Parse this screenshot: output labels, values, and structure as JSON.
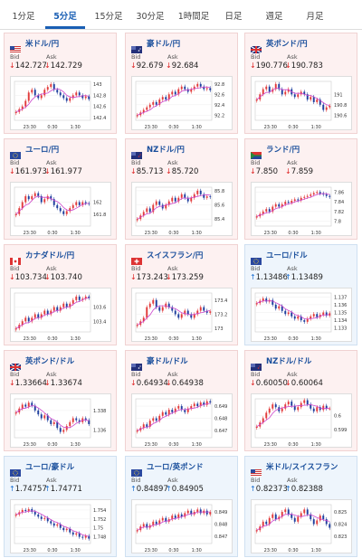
{
  "tabs": [
    "1分足",
    "5分足",
    "15分足",
    "30分足",
    "1時間足",
    "日足",
    "週足",
    "月足"
  ],
  "active_tab": "5分足",
  "colors": {
    "down_card_bg": "#fdf1f1",
    "up_card_bg": "#eef5fc",
    "down_arrow": "#dd2222",
    "up_arrow": "#1a6fd1",
    "candle_up": "#e23b3b",
    "candle_down": "#1f3f9e",
    "ma_line": "#cc44cc"
  },
  "bid_label": "Bid",
  "ask_label": "Ask",
  "cards": [
    {
      "pair": "米ドル/円",
      "flag": "us",
      "dir": "down",
      "arrow": "↓",
      "bid": "142.727",
      "ask": "142.729",
      "chart_data": {
        "type": "candlestick",
        "xticks": [
          "23:30",
          "0:30",
          "1:30"
        ],
        "yticks": [
          "143",
          "142.8",
          "142.6",
          "142.4"
        ],
        "ylim": [
          142.35,
          143.05
        ],
        "series": [
          142.5,
          142.55,
          142.6,
          142.7,
          142.85,
          142.9,
          142.8,
          142.75,
          142.8,
          142.9,
          142.95,
          143.0,
          142.9,
          142.85,
          142.8,
          142.75,
          142.7,
          142.75,
          142.8,
          142.85,
          142.8,
          142.75,
          142.78,
          142.73
        ]
      }
    },
    {
      "pair": "豪ドル/円",
      "flag": "au",
      "dir": "down",
      "arrow": "↓",
      "bid": "92.679",
      "ask": "92.684",
      "chart_data": {
        "type": "candlestick",
        "xticks": [
          "23:30",
          "0:30",
          "1:30"
        ],
        "yticks": [
          "92.8",
          "92.6",
          "92.4",
          "92.2"
        ],
        "ylim": [
          92.1,
          92.85
        ],
        "series": [
          92.2,
          92.25,
          92.3,
          92.35,
          92.4,
          92.45,
          92.4,
          92.5,
          92.55,
          92.5,
          92.6,
          92.65,
          92.6,
          92.7,
          92.75,
          92.7,
          92.65,
          92.7,
          92.75,
          92.8,
          92.75,
          92.7,
          92.72,
          92.68
        ]
      }
    },
    {
      "pair": "英ポンド/円",
      "flag": "gb",
      "dir": "down",
      "arrow": "↓",
      "bid": "190.776",
      "ask": "190.783",
      "chart_data": {
        "type": "candlestick",
        "xticks": [
          "23:30",
          "0:30",
          "1:30"
        ],
        "yticks": [
          "191",
          "190.8",
          "190.6"
        ],
        "ylim": [
          190.5,
          191.25
        ],
        "series": [
          190.9,
          191.0,
          191.1,
          191.15,
          191.05,
          191.1,
          191.2,
          191.1,
          191.0,
          191.05,
          191.1,
          191.0,
          190.95,
          191.0,
          191.05,
          191.0,
          190.9,
          190.95,
          190.85,
          190.9,
          190.8,
          190.7,
          190.75,
          190.78
        ]
      }
    },
    {
      "pair": "ユーロ/円",
      "flag": "eu",
      "dir": "down",
      "arrow": "↓",
      "bid": "161.973",
      "ask": "161.977",
      "chart_data": {
        "type": "candlestick",
        "xticks": [
          "23:30",
          "0:30",
          "1:30"
        ],
        "yticks": [
          "162",
          "161.8"
        ],
        "ylim": [
          161.6,
          162.25
        ],
        "series": [
          161.8,
          161.9,
          162.0,
          162.1,
          162.05,
          162.1,
          162.15,
          162.1,
          162.0,
          162.05,
          162.1,
          162.05,
          161.95,
          161.9,
          161.85,
          161.8,
          161.85,
          161.9,
          161.95,
          162.0,
          161.95,
          162.0,
          161.98,
          161.97
        ]
      }
    },
    {
      "pair": "NZドル/円",
      "flag": "nz",
      "dir": "down",
      "arrow": "↓",
      "bid": "85.713",
      "ask": "85.720",
      "chart_data": {
        "type": "candlestick",
        "xticks": [
          "23:30",
          "0:30",
          "1:30"
        ],
        "yticks": [
          "85.8",
          "85.6",
          "85.4"
        ],
        "ylim": [
          85.3,
          85.85
        ],
        "series": [
          85.4,
          85.45,
          85.5,
          85.55,
          85.5,
          85.6,
          85.65,
          85.6,
          85.55,
          85.6,
          85.65,
          85.7,
          85.65,
          85.7,
          85.75,
          85.7,
          85.65,
          85.7,
          85.75,
          85.8,
          85.75,
          85.7,
          85.72,
          85.71
        ]
      }
    },
    {
      "pair": "ランド/円",
      "flag": "za",
      "dir": "down",
      "arrow": "↓",
      "bid": "7.850",
      "ask": "7.859",
      "chart_data": {
        "type": "candlestick",
        "xticks": [
          "23:30",
          "0:30",
          "1:30"
        ],
        "yticks": [
          "7.86",
          "7.84",
          "7.82",
          "7.8"
        ],
        "ylim": [
          7.79,
          7.87
        ],
        "series": [
          7.81,
          7.815,
          7.82,
          7.825,
          7.82,
          7.83,
          7.835,
          7.83,
          7.835,
          7.84,
          7.838,
          7.842,
          7.845,
          7.843,
          7.848,
          7.85,
          7.852,
          7.855,
          7.858,
          7.86,
          7.857,
          7.855,
          7.852,
          7.85
        ]
      }
    },
    {
      "pair": "カナダドル/円",
      "flag": "ca",
      "dir": "down",
      "arrow": "↓",
      "bid": "103.734",
      "ask": "103.740",
      "chart_data": {
        "type": "candlestick",
        "xticks": [
          "23:30",
          "0:30",
          "1:30"
        ],
        "yticks": [
          "103.6",
          "103.4"
        ],
        "ylim": [
          103.25,
          103.8
        ],
        "series": [
          103.3,
          103.35,
          103.4,
          103.45,
          103.4,
          103.45,
          103.5,
          103.45,
          103.5,
          103.55,
          103.5,
          103.55,
          103.6,
          103.55,
          103.6,
          103.65,
          103.6,
          103.65,
          103.7,
          103.75,
          103.7,
          103.72,
          103.75,
          103.73
        ]
      }
    },
    {
      "pair": "スイスフラン/円",
      "flag": "ch",
      "dir": "down",
      "arrow": "↓",
      "bid": "173.243",
      "ask": "173.259",
      "chart_data": {
        "type": "candlestick",
        "xticks": [
          "23:30",
          "0:30",
          "1:30"
        ],
        "yticks": [
          "173.4",
          "173.2",
          "173"
        ],
        "ylim": [
          172.95,
          173.5
        ],
        "series": [
          173.05,
          173.1,
          173.15,
          173.3,
          173.35,
          173.4,
          173.3,
          173.25,
          173.3,
          173.35,
          173.3,
          173.25,
          173.2,
          173.15,
          173.2,
          173.25,
          173.2,
          173.15,
          173.2,
          173.25,
          173.3,
          173.25,
          173.22,
          173.24
        ]
      }
    },
    {
      "pair": "ユーロ/ドル",
      "flag": "eu",
      "dir": "up",
      "arrow": "↑",
      "bid": "1.13486",
      "ask": "1.13489",
      "chart_data": {
        "type": "candlestick",
        "xticks": [
          "23:30",
          "0:30",
          "1:30"
        ],
        "yticks": [
          "1.137",
          "1.136",
          "1.135",
          "1.134",
          "1.133"
        ],
        "ylim": [
          1.1325,
          1.1375
        ],
        "series": [
          1.1362,
          1.1365,
          1.1368,
          1.1364,
          1.1366,
          1.136,
          1.1355,
          1.1358,
          1.1352,
          1.1348,
          1.135,
          1.1345,
          1.1342,
          1.1345,
          1.134,
          1.1338,
          1.1342,
          1.1345,
          1.1348,
          1.1344,
          1.1347,
          1.135,
          1.1346,
          1.1349
        ]
      }
    },
    {
      "pair": "英ポンド/ドル",
      "flag": "gb",
      "dir": "down",
      "arrow": "↓",
      "bid": "1.33664",
      "ask": "1.33674",
      "chart_data": {
        "type": "candlestick",
        "xticks": [
          "23:30",
          "0:30",
          "1:30"
        ],
        "yticks": [
          "1.338",
          "1.336"
        ],
        "ylim": [
          1.3352,
          1.3392
        ],
        "series": [
          1.3378,
          1.3382,
          1.3386,
          1.3384,
          1.3388,
          1.3385,
          1.338,
          1.3376,
          1.3372,
          1.3375,
          1.337,
          1.3366,
          1.3368,
          1.3362,
          1.3358,
          1.336,
          1.3364,
          1.3368,
          1.3372,
          1.337,
          1.3368,
          1.3372,
          1.337,
          1.3366
        ]
      }
    },
    {
      "pair": "豪ドル/ドル",
      "flag": "au",
      "dir": "down",
      "arrow": "↓",
      "bid": "0.64934",
      "ask": "0.64938",
      "chart_data": {
        "type": "candlestick",
        "xticks": [
          "23:30",
          "0:30",
          "1:30"
        ],
        "yticks": [
          "0.649",
          "0.648",
          "0.647"
        ],
        "ylim": [
          0.6464,
          0.6496
        ],
        "series": [
          0.647,
          0.6472,
          0.6475,
          0.6473,
          0.6478,
          0.648,
          0.6478,
          0.6482,
          0.6485,
          0.6483,
          0.6487,
          0.6485,
          0.6488,
          0.649,
          0.6487,
          0.6485,
          0.6488,
          0.649,
          0.6492,
          0.649,
          0.6493,
          0.6491,
          0.6494,
          0.6493
        ]
      }
    },
    {
      "pair": "NZドル/ドル",
      "flag": "nz",
      "dir": "down",
      "arrow": "↓",
      "bid": "0.60050",
      "ask": "0.60064",
      "chart_data": {
        "type": "candlestick",
        "xticks": [
          "23:30",
          "0:30",
          "1:30"
        ],
        "yticks": [
          "0.6",
          "0.599"
        ],
        "ylim": [
          0.5984,
          0.6012
        ],
        "series": [
          0.5992,
          0.5995,
          0.5998,
          0.6002,
          0.6005,
          0.6008,
          0.6006,
          0.6003,
          0.6005,
          0.6008,
          0.601,
          0.6007,
          0.6004,
          0.6006,
          0.6009,
          0.6011,
          0.6008,
          0.6005,
          0.6003,
          0.6006,
          0.6004,
          0.6007,
          0.6005,
          0.6005
        ]
      }
    },
    {
      "pair": "ユーロ/豪ドル",
      "flag": "eu",
      "dir": "up",
      "arrow": "↑",
      "bid": "1.74757",
      "ask": "1.74771",
      "chart_data": {
        "type": "candlestick",
        "xticks": [
          "23:30",
          "0:30",
          "1:30"
        ],
        "yticks": [
          "1.754",
          "1.752",
          "1.75",
          "1.748"
        ],
        "ylim": [
          1.7465,
          1.7552
        ],
        "series": [
          1.753,
          1.7535,
          1.754,
          1.7538,
          1.7542,
          1.7536,
          1.753,
          1.7525,
          1.752,
          1.7522,
          1.7515,
          1.751,
          1.7505,
          1.7508,
          1.75,
          1.7495,
          1.7498,
          1.749,
          1.7485,
          1.7488,
          1.748,
          1.7478,
          1.7482,
          1.7476
        ]
      }
    },
    {
      "pair": "ユーロ/英ポンド",
      "flag": "eu",
      "dir": "up",
      "arrow": "↑",
      "bid": "0.84897",
      "ask": "0.84905",
      "chart_data": {
        "type": "candlestick",
        "xticks": [
          "23:30",
          "0:30",
          "1:30"
        ],
        "yticks": [
          "0.849",
          "0.848",
          "0.847"
        ],
        "ylim": [
          0.8464,
          0.8496
        ],
        "series": [
          0.8475,
          0.8478,
          0.848,
          0.8477,
          0.8479,
          0.8482,
          0.848,
          0.8483,
          0.8485,
          0.8482,
          0.8484,
          0.8487,
          0.8485,
          0.8488,
          0.8486,
          0.8489,
          0.8491,
          0.8488,
          0.849,
          0.8492,
          0.8489,
          0.8491,
          0.8488,
          0.849
        ]
      }
    },
    {
      "pair": "米ドル/スイスフラン",
      "flag": "us",
      "dir": "up",
      "arrow": "↑",
      "bid": "0.82373",
      "ask": "0.82388",
      "chart_data": {
        "type": "candlestick",
        "xticks": [
          "23:30",
          "0:30",
          "1:30"
        ],
        "yticks": [
          "0.825",
          "0.824",
          "0.823"
        ],
        "ylim": [
          0.8224,
          0.8256
        ],
        "series": [
          0.8235,
          0.8238,
          0.8242,
          0.824,
          0.8245,
          0.8248,
          0.8244,
          0.8246,
          0.825,
          0.8252,
          0.8248,
          0.8245,
          0.8242,
          0.8246,
          0.8249,
          0.8252,
          0.8248,
          0.8244,
          0.824,
          0.8243,
          0.8247,
          0.8244,
          0.824,
          0.8237
        ]
      }
    }
  ]
}
